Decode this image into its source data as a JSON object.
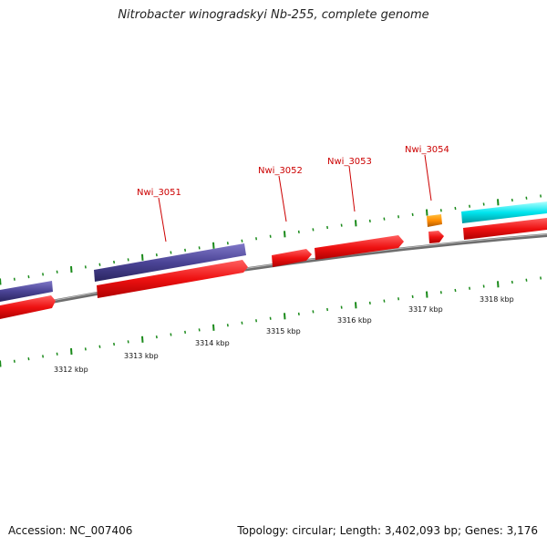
{
  "title": "Nitrobacter winogradskyi Nb-255, complete genome",
  "footer": {
    "accession": "Accession: NC_007406",
    "summary": "Topology: circular; Length: 3,402,093 bp; Genes: 3,176"
  },
  "colors": {
    "cds_forward": "#e31a1c",
    "cds_reverse": "#4b4496",
    "trna": "#ff8c00",
    "rrna": "#00e5ee",
    "backbone": "#8a8a8a",
    "tick": "#1a8a1a",
    "gene_label": "#cc0000"
  },
  "scale_labels": [
    {
      "text": "3312 kbp"
    },
    {
      "text": "3313 kbp"
    },
    {
      "text": "3314 kbp"
    },
    {
      "text": "3315 kbp"
    },
    {
      "text": "3316 kbp"
    },
    {
      "text": "3317 kbp"
    },
    {
      "text": "3318 kbp"
    }
  ],
  "gene_labels": [
    {
      "text": "Nwi_3051"
    },
    {
      "text": "Nwi_3052"
    },
    {
      "text": "Nwi_3053"
    },
    {
      "text": "Nwi_3054"
    }
  ]
}
